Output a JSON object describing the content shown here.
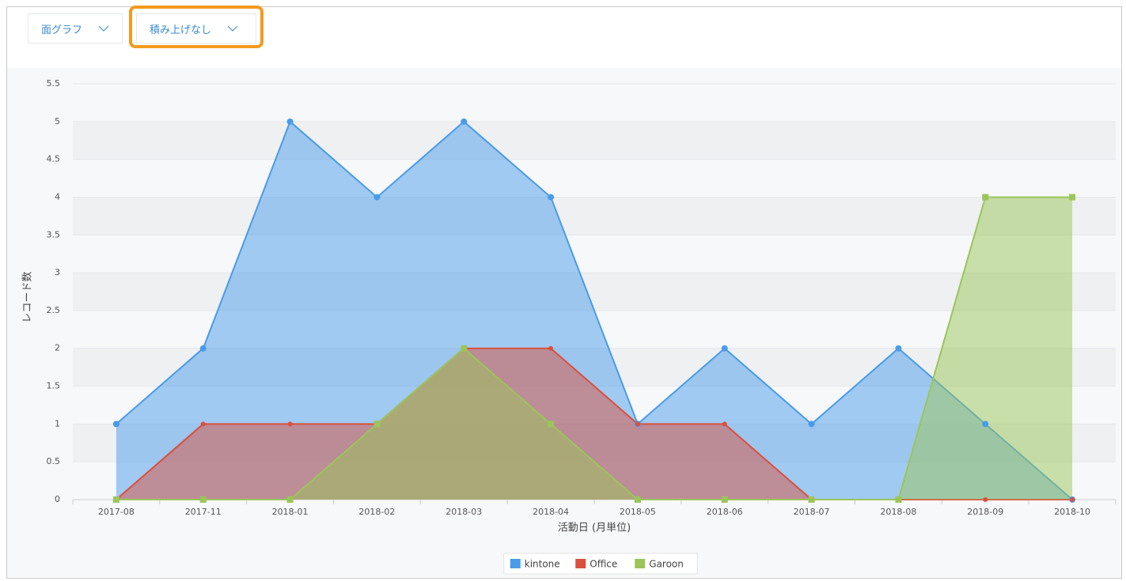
{
  "ui": {
    "chart_type_select": "面グラフ",
    "stack_select": "積み上げなし"
  },
  "chart_data": {
    "type": "area",
    "x_label": "活動日 (月単位)",
    "y_label": "レコード数",
    "categories": [
      "2017-08",
      "2017-11",
      "2018-01",
      "2018-02",
      "2018-03",
      "2018-04",
      "2018-05",
      "2018-06",
      "2018-07",
      "2018-08",
      "2018-09",
      "2018-10"
    ],
    "series": [
      {
        "name": "kintone",
        "color": "#4a9be8",
        "marker": "circle",
        "values": [
          1,
          2,
          5,
          4,
          5,
          4,
          1,
          2,
          1,
          2,
          1,
          0
        ]
      },
      {
        "name": "Office",
        "color": "#d9503f",
        "marker": "circle",
        "values": [
          0,
          1,
          1,
          1,
          2,
          2,
          1,
          1,
          0,
          0,
          0,
          0
        ]
      },
      {
        "name": "Garoon",
        "color": "#9bc55a",
        "marker": "square",
        "values": [
          0,
          0,
          0,
          1,
          2,
          1,
          0,
          0,
          0,
          0,
          4,
          4
        ]
      }
    ],
    "ylim": [
      0,
      5.5
    ],
    "yticks": [
      0,
      0.5,
      1,
      1.5,
      2,
      2.5,
      3,
      3.5,
      4,
      4.5,
      5,
      5.5
    ],
    "grid": true,
    "legend": "bottom"
  }
}
